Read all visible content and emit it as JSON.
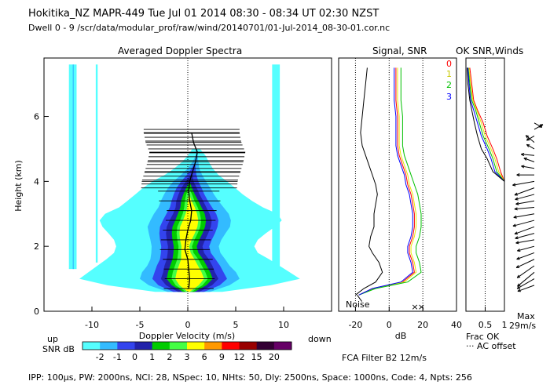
{
  "header": {
    "line1": "Hokitika_NZ  MAPR-449  Tue Jul 01 2014 08:30 - 08:34 UT 02:30 NZST",
    "line2": "Dwell  0 - 9  /scr/data/modular_prof/raw/wind/20140701/01-Jul-2014_08-30-01.cor.nc"
  },
  "panels": {
    "spectra_title": "Averaged Doppler Spectra",
    "signal_title": "Signal, SNR",
    "ok_title": "OK SNR,Winds"
  },
  "labels": {
    "noise": "Noise",
    "up": "up",
    "down": "down",
    "max": "Max",
    "max_val": "29m/s",
    "frac_ok": "Frac OK",
    "ac_offset": "··· AC offset",
    "fca": "FCA Filter B2 12m/s",
    "snr_db": "SNR dB",
    "footer": "IPP: 100μs,  PW: 2000ns,  NCI:  28,  NSpec: 10, NHts: 50,  Dly: 2500ns,  Space: 1000ns,  Code: 4,  Npts: 256"
  },
  "dwell_legend": [
    {
      "label": "0",
      "color": "#ff0000"
    },
    {
      "label": "1",
      "color": "#e8e800"
    },
    {
      "label": "2",
      "color": "#00c000"
    },
    {
      "label": "3",
      "color": "#0000ff"
    }
  ],
  "snr_scale": {
    "ticks": [
      "-2",
      "-1",
      "0",
      "1",
      "2",
      "3",
      "6",
      "9",
      "12",
      "15",
      "20"
    ],
    "colors": [
      "#55ffff",
      "#33bbff",
      "#3344ee",
      "#2222aa",
      "#00cc00",
      "#44ff44",
      "#ffff00",
      "#ff9900",
      "#ff0000",
      "#990000",
      "#330033",
      "#660066"
    ]
  },
  "chart_data": [
    {
      "type": "heatmap",
      "title": "Averaged Doppler Spectra",
      "xlabel": "Doppler Velocity (m/s)",
      "ylabel": "Height (km)",
      "xlim": [
        -15,
        15
      ],
      "ylim": [
        0,
        7.8
      ],
      "xticks": [
        -10,
        -5,
        0,
        5,
        10
      ],
      "yticks": [
        0,
        2,
        4,
        6
      ],
      "profile_heights": [
        0.7,
        1.0,
        1.3,
        1.6,
        1.9,
        2.2,
        2.5,
        2.8,
        3.1,
        3.4,
        3.7,
        4.0,
        4.3,
        4.6,
        4.9,
        5.2,
        5.5
      ],
      "profile_velocity": [
        0.1,
        0.2,
        0.1,
        0.0,
        -0.3,
        -0.2,
        0.0,
        0.3,
        0.4,
        0.2,
        0.1,
        0.2,
        0.5,
        0.8,
        1.0,
        0.6,
        0.4
      ]
    },
    {
      "type": "line",
      "title": "Signal, SNR",
      "xlabel": "dB",
      "xlim": [
        -30,
        40
      ],
      "xticks": [
        -20,
        0,
        20,
        40
      ],
      "noise_level_db": -19,
      "heights": [
        0.5,
        0.7,
        0.9,
        1.2,
        1.5,
        1.8,
        2.0,
        2.3,
        2.6,
        3.0,
        3.3,
        3.6,
        3.9,
        4.2,
        4.5,
        4.8,
        5.1,
        5.5,
        6.0,
        6.5,
        7.0,
        7.5
      ],
      "series": [
        {
          "name": "Signal",
          "values": [
            -20,
            -15,
            -8,
            -4,
            -6,
            -10,
            -12,
            -11,
            -9,
            -9,
            -8,
            -7,
            -8,
            -10,
            -12,
            -14,
            -16,
            -17,
            -16,
            -15,
            -14,
            -13
          ]
        },
        {
          "name": "0",
          "values": [
            -18,
            -10,
            8,
            15,
            14,
            12,
            12,
            14,
            15,
            15,
            14,
            13,
            11,
            10,
            8,
            6,
            5,
            5,
            5,
            4,
            4,
            4
          ]
        },
        {
          "name": "1",
          "values": [
            -18,
            -9,
            9,
            16,
            15,
            13,
            13,
            15,
            16,
            16,
            15,
            14,
            12,
            11,
            9,
            7,
            6,
            6,
            6,
            5,
            5,
            5
          ]
        },
        {
          "name": "2",
          "values": [
            -18,
            -8,
            11,
            19,
            18,
            16,
            16,
            18,
            19,
            19,
            18,
            17,
            15,
            13,
            11,
            9,
            8,
            8,
            8,
            7,
            7,
            7
          ]
        },
        {
          "name": "3",
          "values": [
            -18,
            -10,
            7,
            14,
            13,
            11,
            11,
            13,
            14,
            14,
            13,
            12,
            10,
            9,
            7,
            5,
            4,
            4,
            4,
            3,
            3,
            3
          ]
        }
      ]
    },
    {
      "type": "line",
      "title": "OK SNR,Winds",
      "xlabel": "Frac OK",
      "xlim": [
        0,
        1
      ],
      "xticks": [
        "0.5",
        "1"
      ],
      "heights": [
        0.5,
        0.7,
        1.0,
        2.0,
        3.0,
        4.0,
        4.3,
        4.7,
        5.0,
        5.4,
        5.8,
        6.2,
        6.5,
        7.0,
        7.5
      ],
      "series": [
        {
          "name": "0",
          "values": [
            1,
            1,
            1,
            1,
            1,
            1,
            0.9,
            0.8,
            0.7,
            0.55,
            0.45,
            0.3,
            0.2,
            0.15,
            0.1
          ]
        },
        {
          "name": "1",
          "values": [
            1,
            1,
            1,
            1,
            1,
            1,
            0.85,
            0.75,
            0.65,
            0.5,
            0.4,
            0.28,
            0.18,
            0.12,
            0.08
          ]
        },
        {
          "name": "2",
          "values": [
            1,
            1,
            1,
            1,
            1,
            1,
            0.8,
            0.7,
            0.6,
            0.45,
            0.35,
            0.25,
            0.15,
            0.1,
            0.06
          ]
        },
        {
          "name": "3",
          "values": [
            1,
            1,
            1,
            1,
            1,
            1,
            0.75,
            0.65,
            0.55,
            0.4,
            0.3,
            0.2,
            0.12,
            0.08,
            0.05
          ]
        },
        {
          "name": "black",
          "values": [
            1,
            1,
            1,
            1,
            1,
            1,
            0.7,
            0.55,
            0.4,
            0.3,
            0.22,
            0.15,
            0.1,
            0.05,
            0.03
          ]
        }
      ],
      "wind_barbs": {
        "heights": [
          0.8,
          1.0,
          1.2,
          1.4,
          1.6,
          1.8,
          2.0,
          2.2,
          2.4,
          2.6,
          2.8,
          3.0,
          3.2,
          3.4,
          3.6,
          3.8,
          4.0,
          4.2,
          4.4,
          4.6,
          4.8,
          5.0,
          5.2,
          5.4,
          5.6,
          5.8
        ],
        "angles_deg": [
          200,
          210,
          220,
          215,
          205,
          200,
          195,
          190,
          195,
          200,
          195,
          190,
          185,
          190,
          195,
          200,
          190,
          180,
          170,
          160,
          175,
          150,
          140,
          210,
          30,
          330
        ],
        "speed_frac": [
          0.8,
          0.9,
          1.0,
          0.95,
          0.9,
          0.85,
          0.8,
          0.85,
          0.9,
          0.95,
          1.0,
          0.95,
          0.9,
          0.85,
          0.9,
          0.95,
          1.0,
          0.8,
          0.6,
          0.5,
          0.6,
          0.4,
          0.5,
          0.4,
          0.45,
          0.4
        ]
      }
    }
  ]
}
